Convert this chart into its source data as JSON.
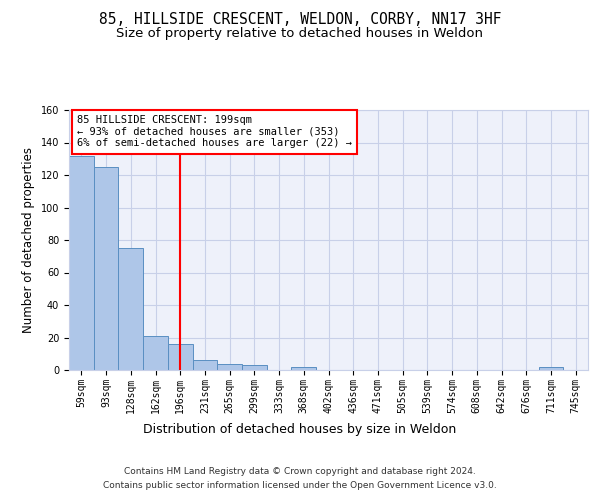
{
  "title": "85, HILLSIDE CRESCENT, WELDON, CORBY, NN17 3HF",
  "subtitle": "Size of property relative to detached houses in Weldon",
  "xlabel": "Distribution of detached houses by size in Weldon",
  "ylabel": "Number of detached properties",
  "categories": [
    "59sqm",
    "93sqm",
    "128sqm",
    "162sqm",
    "196sqm",
    "231sqm",
    "265sqm",
    "299sqm",
    "333sqm",
    "368sqm",
    "402sqm",
    "436sqm",
    "471sqm",
    "505sqm",
    "539sqm",
    "574sqm",
    "608sqm",
    "642sqm",
    "676sqm",
    "711sqm",
    "745sqm"
  ],
  "values": [
    132,
    125,
    75,
    21,
    16,
    6,
    4,
    3,
    0,
    2,
    0,
    0,
    0,
    0,
    0,
    0,
    0,
    0,
    0,
    2,
    0
  ],
  "bar_color": "#aec6e8",
  "bar_edge_color": "#5a8fc2",
  "vline_x_index": 4,
  "vline_color": "red",
  "annotation_text": "85 HILLSIDE CRESCENT: 199sqm\n← 93% of detached houses are smaller (353)\n6% of semi-detached houses are larger (22) →",
  "annotation_box_color": "white",
  "annotation_box_edgecolor": "red",
  "ylim": [
    0,
    160
  ],
  "yticks": [
    0,
    20,
    40,
    60,
    80,
    100,
    120,
    140,
    160
  ],
  "footer": "Contains HM Land Registry data © Crown copyright and database right 2024.\nContains public sector information licensed under the Open Government Licence v3.0.",
  "bg_color": "#eef1fa",
  "grid_color": "#c8d0e8",
  "title_fontsize": 10.5,
  "subtitle_fontsize": 9.5,
  "xlabel_fontsize": 9,
  "ylabel_fontsize": 8.5,
  "tick_fontsize": 7,
  "annotation_fontsize": 7.5,
  "footer_fontsize": 6.5
}
